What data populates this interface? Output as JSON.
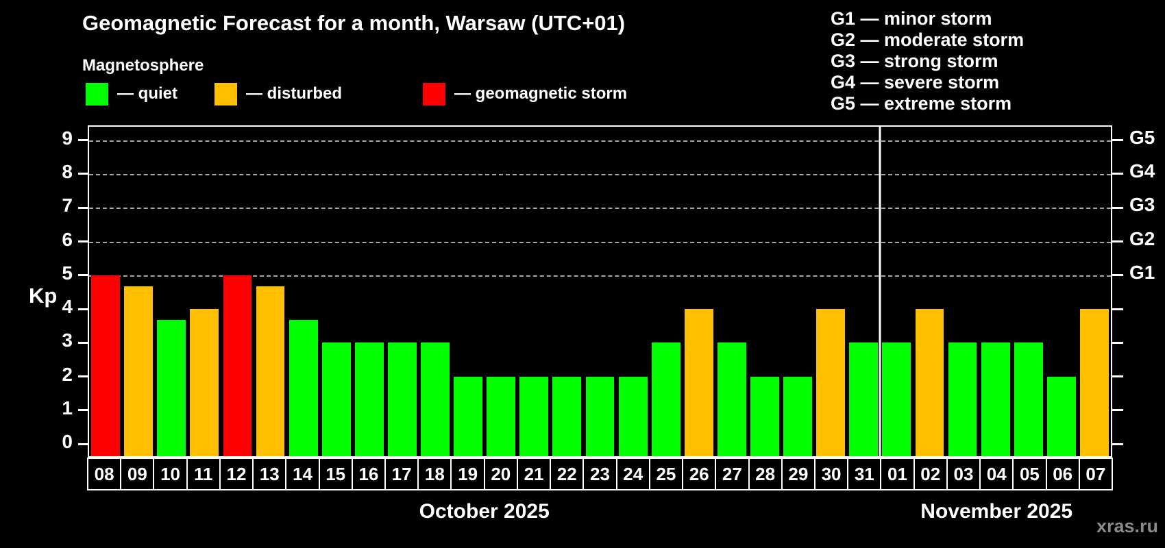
{
  "title": "Geomagnetic Forecast for a month, Warsaw (UTC+01)",
  "subtitle": "Magnetosphere",
  "legend": {
    "items": [
      {
        "key": "quiet",
        "label": "— quiet",
        "color": "#00ff00"
      },
      {
        "key": "disturbed",
        "label": "— disturbed",
        "color": "#ffc000"
      },
      {
        "key": "storm",
        "label": "— geomagnetic storm",
        "color": "#ff0000"
      }
    ]
  },
  "storm_scale_legend": {
    "items": [
      "G1 — minor storm",
      "G2 — moderate storm",
      "G3 — strong storm",
      "G4 — severe storm",
      "G5 — extreme storm"
    ]
  },
  "watermark": "xras.ru",
  "chart_data": {
    "type": "bar",
    "title": "Geomagnetic Forecast for a month, Warsaw (UTC+01)",
    "xlabel": "",
    "ylabel": "Kp",
    "ylim": [
      -0.36,
      9.4
    ],
    "y_ticks": [
      0,
      1,
      2,
      3,
      4,
      5,
      6,
      7,
      8,
      9
    ],
    "gridlines_at": [
      5,
      6,
      7,
      8,
      9
    ],
    "grid": "dashed-horizontal-at-storm-levels-only",
    "legend_position": "top",
    "g_labels": [
      {
        "value": 5,
        "label": "G1"
      },
      {
        "value": 6,
        "label": "G2"
      },
      {
        "value": 7,
        "label": "G3"
      },
      {
        "value": 8,
        "label": "G4"
      },
      {
        "value": 9,
        "label": "G5"
      }
    ],
    "months": [
      {
        "label": "October 2025",
        "days": 24
      },
      {
        "label": "November 2025",
        "days": 7
      }
    ],
    "categories": [
      "08",
      "09",
      "10",
      "11",
      "12",
      "13",
      "14",
      "15",
      "16",
      "17",
      "18",
      "19",
      "20",
      "21",
      "22",
      "23",
      "24",
      "25",
      "26",
      "27",
      "28",
      "29",
      "30",
      "31",
      "01",
      "02",
      "03",
      "04",
      "05",
      "06",
      "07"
    ],
    "values": [
      5,
      4.67,
      3.67,
      4,
      5,
      4.67,
      3.67,
      3,
      3,
      3,
      3,
      2,
      2,
      2,
      2,
      2,
      2,
      3,
      4,
      3,
      2,
      2,
      4,
      3,
      3,
      4,
      3,
      3,
      3,
      2,
      4
    ],
    "statuses": [
      "storm",
      "disturbed",
      "quiet",
      "disturbed",
      "storm",
      "disturbed",
      "quiet",
      "quiet",
      "quiet",
      "quiet",
      "quiet",
      "quiet",
      "quiet",
      "quiet",
      "quiet",
      "quiet",
      "quiet",
      "quiet",
      "disturbed",
      "quiet",
      "quiet",
      "quiet",
      "disturbed",
      "quiet",
      "quiet",
      "disturbed",
      "quiet",
      "quiet",
      "quiet",
      "quiet",
      "disturbed"
    ],
    "colors": {
      "quiet": "#00ff00",
      "disturbed": "#ffc000",
      "storm": "#ff0000"
    }
  }
}
